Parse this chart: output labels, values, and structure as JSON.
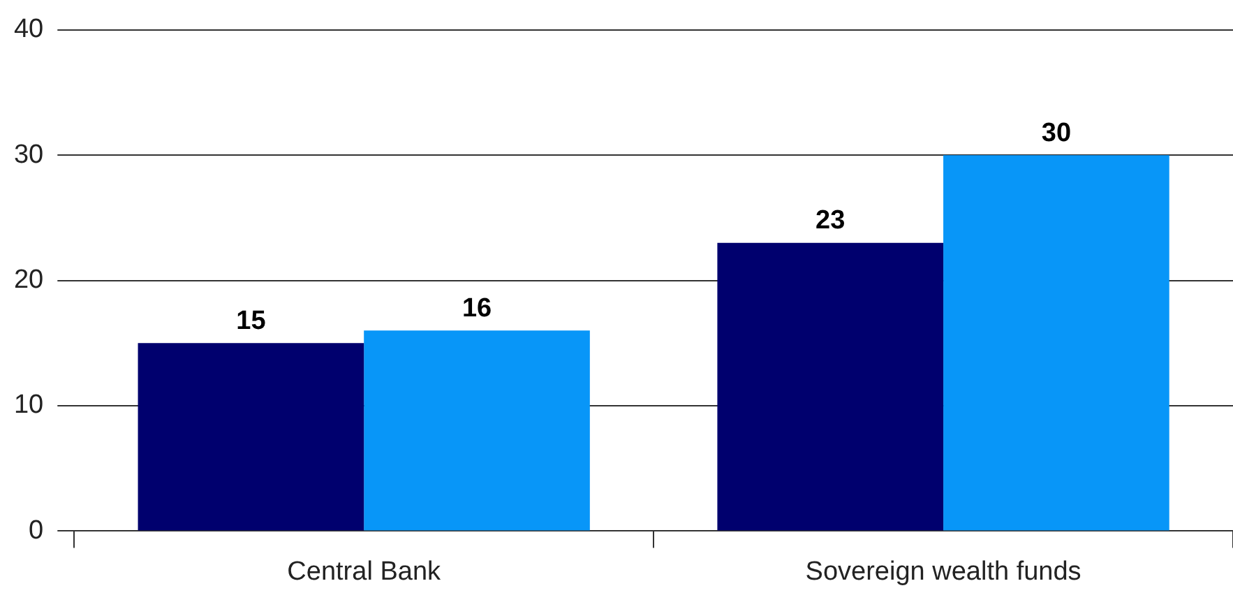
{
  "chart_data": {
    "type": "bar",
    "categories": [
      "Central Bank",
      "Sovereign wealth funds"
    ],
    "series": [
      {
        "color": "#00006e",
        "values": [
          15,
          23
        ]
      },
      {
        "color": "#0896f8",
        "values": [
          16,
          30
        ]
      }
    ],
    "ylim": [
      0,
      40
    ],
    "yticks": [
      0,
      10,
      20,
      30,
      40
    ],
    "grid": "y",
    "legend": false,
    "data_labels": true
  }
}
